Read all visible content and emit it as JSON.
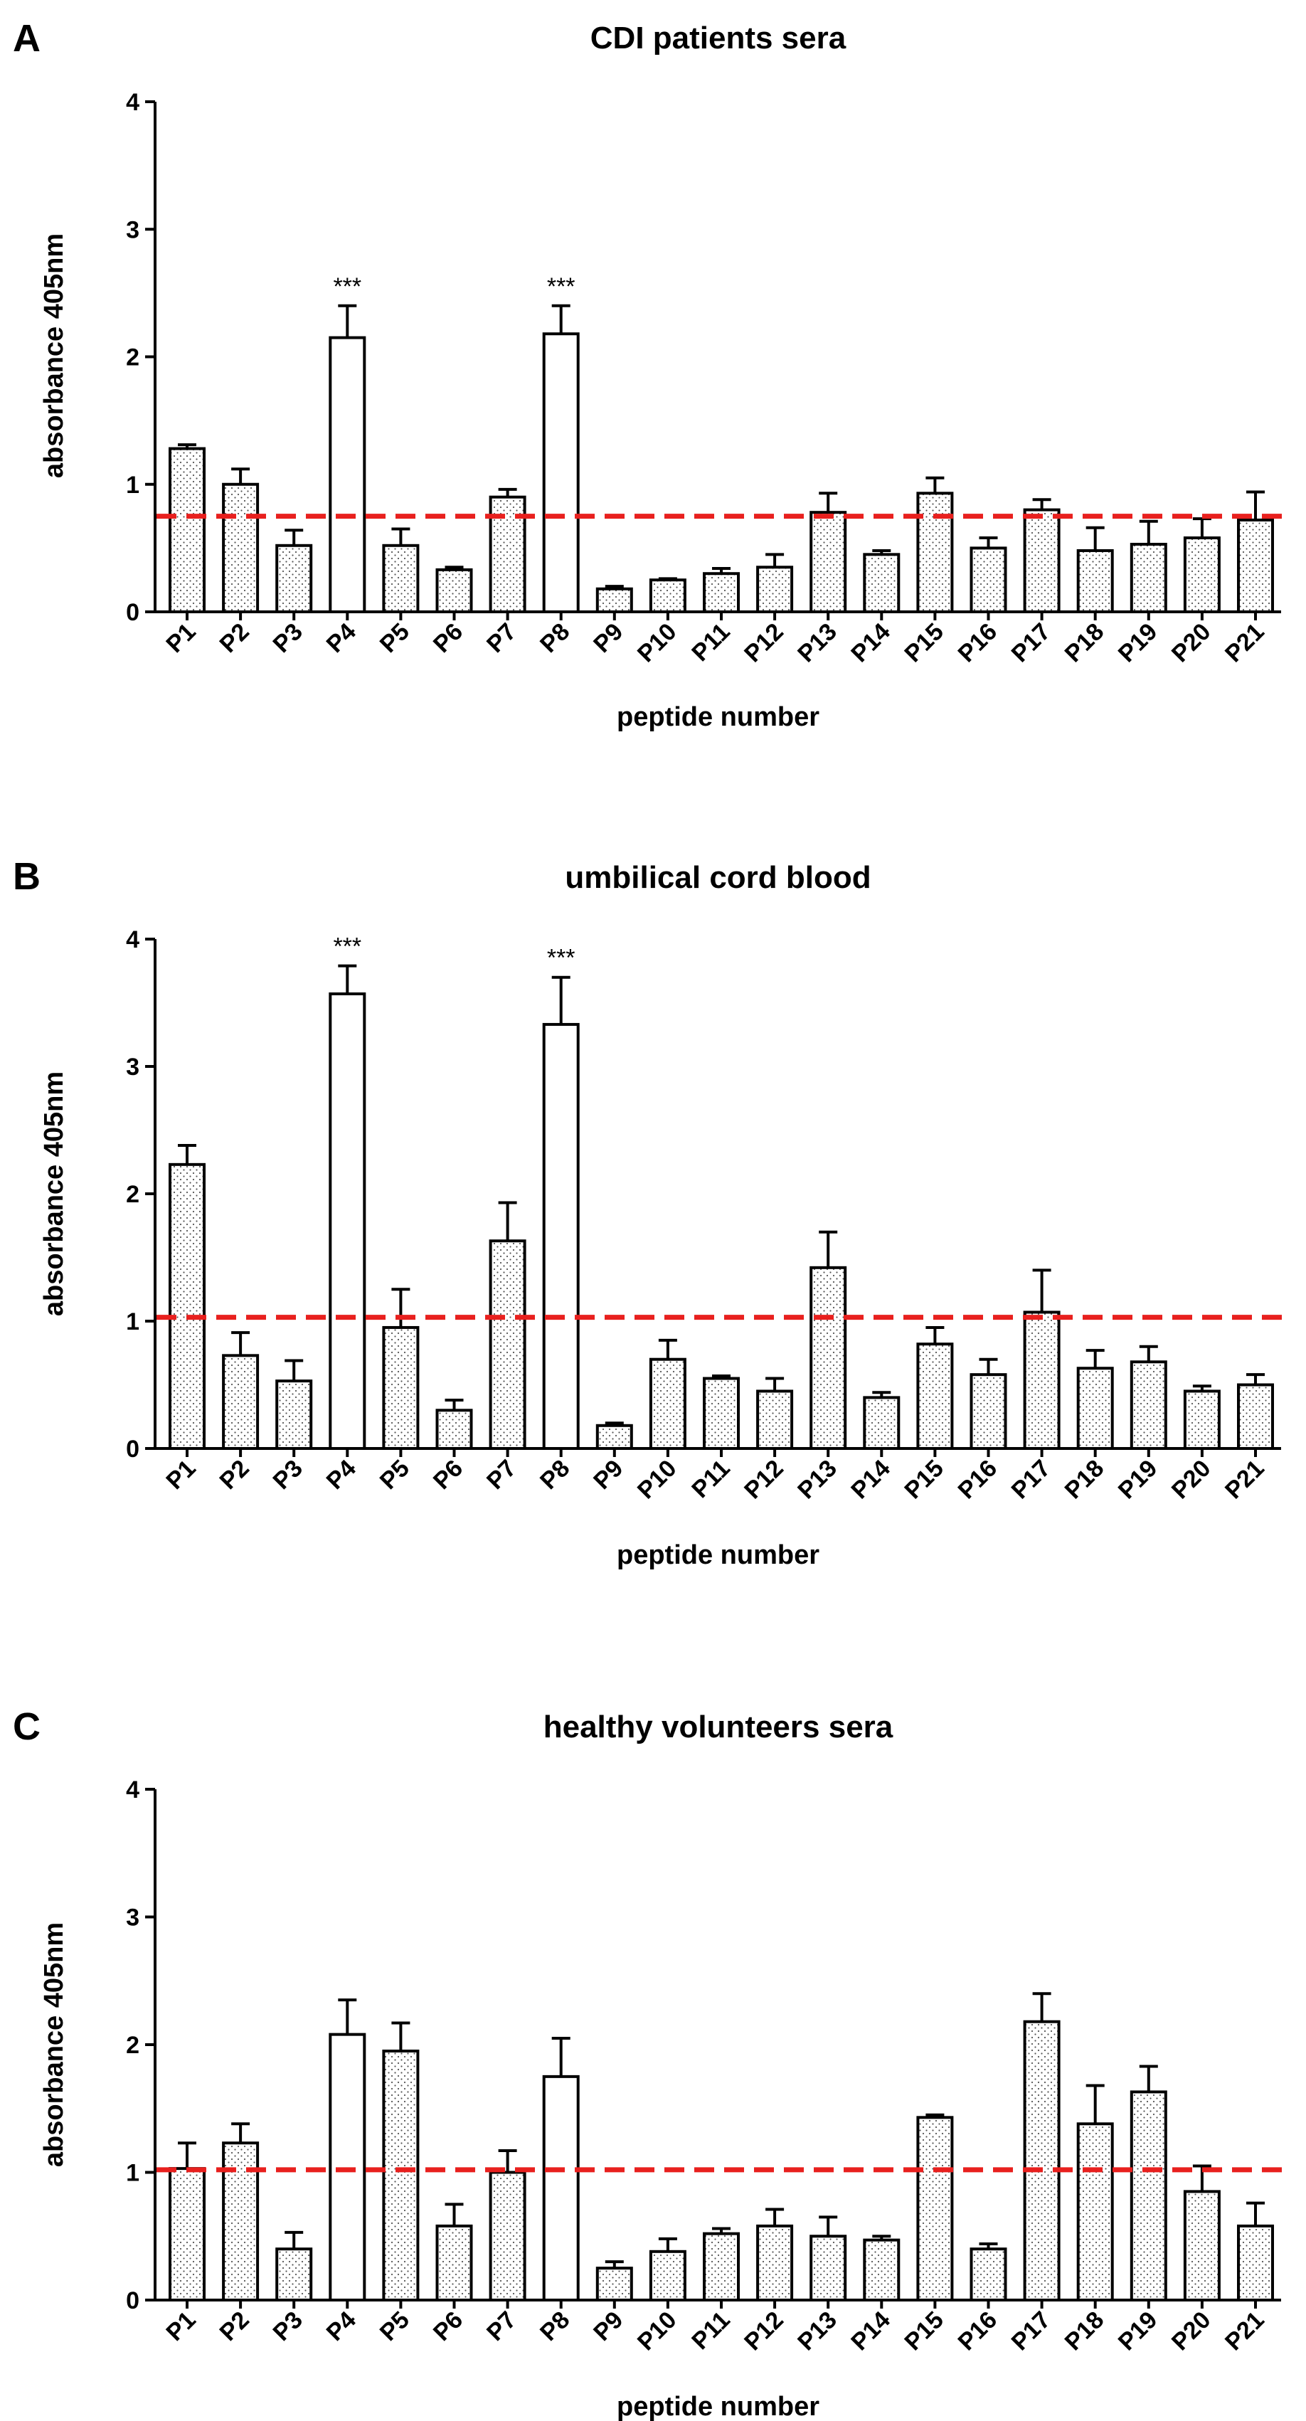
{
  "style": {
    "bar_outline": "#000000",
    "bar_fill": "#ffffff",
    "dot_color": "#555555",
    "threshold_color": "#e8201e"
  },
  "chart_data": [
    {
      "panel": "A",
      "type": "bar",
      "title": "CDI patients sera",
      "xlabel": "peptide number",
      "ylabel": "absorbance 405nm",
      "ylim": [
        0,
        4
      ],
      "yticks": [
        "0",
        "1",
        "2",
        "3",
        "4"
      ],
      "categories": [
        "P1",
        "P2",
        "P3",
        "P4",
        "P5",
        "P6",
        "P7",
        "P8",
        "P9",
        "P10",
        "P11",
        "P12",
        "P13",
        "P14",
        "P15",
        "P16",
        "P17",
        "P18",
        "P19",
        "P20",
        "P21"
      ],
      "values": [
        1.28,
        1.0,
        0.52,
        2.15,
        0.52,
        0.33,
        0.9,
        2.18,
        0.18,
        0.25,
        0.3,
        0.35,
        0.78,
        0.45,
        0.93,
        0.5,
        0.8,
        0.48,
        0.53,
        0.58,
        0.72
      ],
      "errors": [
        0.03,
        0.12,
        0.12,
        0.25,
        0.13,
        0.02,
        0.06,
        0.22,
        0.02,
        0.01,
        0.04,
        0.1,
        0.15,
        0.03,
        0.12,
        0.08,
        0.08,
        0.18,
        0.18,
        0.15,
        0.22
      ],
      "fill": [
        "dots",
        "dots",
        "dots",
        "plain",
        "dots",
        "dots",
        "dots",
        "plain",
        "dots",
        "dots",
        "dots",
        "dots",
        "dots",
        "dots",
        "dots",
        "dots",
        "dots",
        "dots",
        "dots",
        "dots",
        "dots"
      ],
      "significance": [
        {
          "category": "P4",
          "label": "***"
        },
        {
          "category": "P8",
          "label": "***"
        }
      ],
      "threshold": 0.75
    },
    {
      "panel": "B",
      "type": "bar",
      "title": "umbilical cord blood",
      "xlabel": "peptide number",
      "ylabel": "absorbance 405nm",
      "ylim": [
        0,
        4
      ],
      "yticks": [
        "0",
        "1",
        "2",
        "3",
        "4"
      ],
      "categories": [
        "P1",
        "P2",
        "P3",
        "P4",
        "P5",
        "P6",
        "P7",
        "P8",
        "P9",
        "P10",
        "P11",
        "P12",
        "P13",
        "P14",
        "P15",
        "P16",
        "P17",
        "P18",
        "P19",
        "P20",
        "P21"
      ],
      "values": [
        2.23,
        0.73,
        0.53,
        3.57,
        0.95,
        0.3,
        1.63,
        3.33,
        0.18,
        0.7,
        0.55,
        0.45,
        1.42,
        0.4,
        0.82,
        0.58,
        1.07,
        0.63,
        0.68,
        0.45,
        0.5
      ],
      "errors": [
        0.15,
        0.18,
        0.16,
        0.22,
        0.3,
        0.08,
        0.3,
        0.37,
        0.02,
        0.15,
        0.02,
        0.1,
        0.28,
        0.04,
        0.13,
        0.12,
        0.33,
        0.14,
        0.12,
        0.04,
        0.08
      ],
      "fill": [
        "dots",
        "dots",
        "dots",
        "plain",
        "dots",
        "dots",
        "dots",
        "plain",
        "dots",
        "dots",
        "dots",
        "dots",
        "dots",
        "dots",
        "dots",
        "dots",
        "dots",
        "dots",
        "dots",
        "dots",
        "dots"
      ],
      "significance": [
        {
          "category": "P4",
          "label": "***"
        },
        {
          "category": "P8",
          "label": "***"
        }
      ],
      "threshold": 1.03
    },
    {
      "panel": "C",
      "type": "bar",
      "title": "healthy volunteers sera",
      "xlabel": "peptide number",
      "ylabel": "absorbance 405nm",
      "ylim": [
        0,
        4
      ],
      "yticks": [
        "0",
        "1",
        "2",
        "3",
        "4"
      ],
      "categories": [
        "P1",
        "P2",
        "P3",
        "P4",
        "P5",
        "P6",
        "P7",
        "P8",
        "P9",
        "P10",
        "P11",
        "P12",
        "P13",
        "P14",
        "P15",
        "P16",
        "P17",
        "P18",
        "P19",
        "P20",
        "P21"
      ],
      "values": [
        1.03,
        1.23,
        0.4,
        2.08,
        1.95,
        0.58,
        1.0,
        1.75,
        0.25,
        0.38,
        0.52,
        0.58,
        0.5,
        0.47,
        1.43,
        0.4,
        2.18,
        1.38,
        1.63,
        0.85,
        0.58
      ],
      "errors": [
        0.2,
        0.15,
        0.13,
        0.27,
        0.22,
        0.17,
        0.17,
        0.3,
        0.05,
        0.1,
        0.04,
        0.13,
        0.15,
        0.03,
        0.02,
        0.04,
        0.22,
        0.3,
        0.2,
        0.2,
        0.18
      ],
      "fill": [
        "dots",
        "dots",
        "dots",
        "plain",
        "dots",
        "dots",
        "dots",
        "plain",
        "dots",
        "dots",
        "dots",
        "dots",
        "dots",
        "dots",
        "dots",
        "dots",
        "dots",
        "dots",
        "dots",
        "dots",
        "dots"
      ],
      "significance": [],
      "threshold": 1.02
    }
  ]
}
